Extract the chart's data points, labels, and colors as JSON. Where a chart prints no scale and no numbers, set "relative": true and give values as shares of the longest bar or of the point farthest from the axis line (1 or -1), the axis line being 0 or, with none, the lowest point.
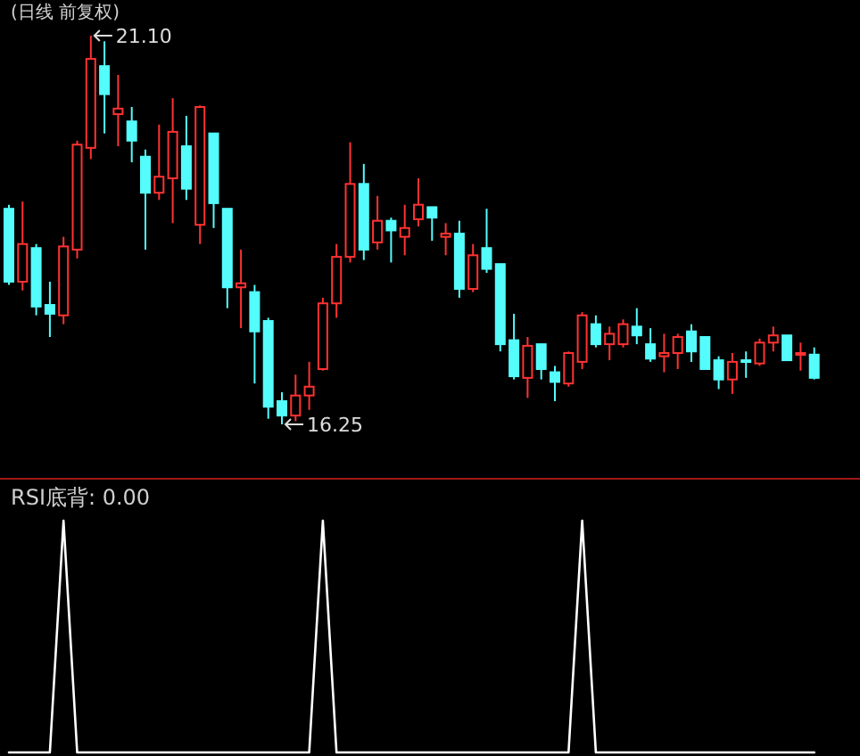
{
  "chart_data": [
    {
      "type": "candlestick",
      "title": "(日线 前复权)",
      "categories": [
        null,
        null,
        null,
        null,
        null,
        null,
        null,
        null,
        null,
        null,
        null,
        null,
        null,
        null,
        null,
        null,
        null,
        null,
        null,
        null,
        null,
        null,
        null,
        null,
        null,
        null,
        null,
        null,
        null,
        null,
        null,
        null,
        null,
        null,
        null,
        null,
        null,
        null,
        null,
        null,
        null,
        null,
        null,
        null,
        null,
        null,
        null,
        null,
        null,
        null,
        null,
        null,
        null,
        null,
        null,
        null,
        null,
        null,
        null,
        null
      ],
      "ohlc": [
        [
          18.94,
          18.99,
          17.99,
          18.03
        ],
        [
          18.03,
          19.03,
          17.92,
          18.5
        ],
        [
          18.45,
          18.5,
          17.61,
          17.72
        ],
        [
          17.74,
          18.03,
          17.34,
          17.63
        ],
        [
          17.61,
          18.59,
          17.5,
          18.47
        ],
        [
          18.43,
          19.79,
          18.32,
          19.74
        ],
        [
          19.7,
          21.1,
          19.56,
          20.81
        ],
        [
          20.72,
          21.03,
          19.88,
          20.37
        ],
        [
          20.12,
          20.61,
          19.72,
          20.19
        ],
        [
          20.03,
          20.21,
          19.52,
          19.79
        ],
        [
          19.59,
          19.68,
          18.43,
          19.14
        ],
        [
          19.14,
          19.99,
          19.05,
          19.34
        ],
        [
          19.32,
          20.32,
          18.76,
          19.9
        ],
        [
          19.72,
          20.1,
          19.05,
          19.19
        ],
        [
          18.74,
          20.23,
          18.5,
          20.21
        ],
        [
          19.88,
          19.88,
          18.7,
          19.01
        ],
        [
          18.94,
          18.94,
          17.7,
          17.96
        ],
        [
          17.96,
          18.43,
          17.45,
          18.01
        ],
        [
          17.9,
          17.99,
          16.76,
          17.41
        ],
        [
          17.54,
          17.58,
          16.32,
          16.47
        ],
        [
          16.54,
          16.65,
          16.25,
          16.36
        ],
        [
          16.36,
          16.87,
          16.29,
          16.61
        ],
        [
          16.61,
          17.03,
          16.43,
          16.72
        ],
        [
          16.94,
          17.83,
          16.92,
          17.76
        ],
        [
          17.76,
          18.5,
          17.58,
          18.34
        ],
        [
          18.34,
          19.77,
          18.27,
          19.25
        ],
        [
          19.25,
          19.5,
          18.3,
          18.43
        ],
        [
          18.52,
          19.1,
          18.43,
          18.79
        ],
        [
          18.79,
          18.83,
          18.27,
          18.67
        ],
        [
          18.59,
          18.99,
          18.36,
          18.7
        ],
        [
          18.81,
          19.32,
          18.72,
          18.99
        ],
        [
          18.96,
          18.96,
          18.54,
          18.83
        ],
        [
          18.59,
          18.76,
          18.36,
          18.63
        ],
        [
          18.63,
          18.79,
          17.83,
          17.94
        ],
        [
          17.94,
          18.5,
          17.9,
          18.36
        ],
        [
          18.45,
          18.94,
          18.14,
          18.19
        ],
        [
          18.25,
          18.25,
          17.16,
          17.25
        ],
        [
          17.3,
          17.63,
          16.81,
          16.85
        ],
        [
          16.83,
          17.34,
          16.58,
          17.23
        ],
        [
          17.25,
          17.25,
          16.81,
          16.94
        ],
        [
          16.9,
          16.98,
          16.54,
          16.78
        ],
        [
          16.76,
          17.16,
          16.72,
          17.14
        ],
        [
          17.03,
          17.65,
          16.94,
          17.61
        ],
        [
          17.5,
          17.61,
          17.21,
          17.25
        ],
        [
          17.25,
          17.47,
          17.05,
          17.38
        ],
        [
          17.25,
          17.56,
          17.21,
          17.5
        ],
        [
          17.47,
          17.7,
          17.25,
          17.36
        ],
        [
          17.25,
          17.45,
          17.03,
          17.07
        ],
        [
          17.1,
          17.38,
          16.9,
          17.14
        ],
        [
          17.14,
          17.38,
          16.94,
          17.34
        ],
        [
          17.41,
          17.5,
          17.03,
          17.16
        ],
        [
          17.34,
          17.34,
          16.94,
          16.94
        ],
        [
          17.05,
          17.1,
          16.69,
          16.81
        ],
        [
          16.81,
          17.14,
          16.63,
          17.03
        ],
        [
          17.05,
          17.16,
          16.83,
          17.03
        ],
        [
          17.01,
          17.32,
          16.98,
          17.27
        ],
        [
          17.27,
          17.47,
          17.16,
          17.36
        ],
        [
          17.36,
          17.36,
          17.05,
          17.05
        ],
        [
          17.12,
          17.27,
          16.92,
          17.14
        ],
        [
          17.12,
          17.21,
          16.81,
          16.83
        ]
      ],
      "colors": [
        "#54fcfc",
        "#ff3232",
        "#54fcfc",
        "#54fcfc",
        "#ff3232",
        "#ff3232",
        "#ff3232",
        "#54fcfc",
        "#ff3232",
        "#54fcfc",
        "#54fcfc",
        "#ff3232",
        "#ff3232",
        "#54fcfc",
        "#ff3232",
        "#54fcfc",
        "#54fcfc",
        "#ff3232",
        "#54fcfc",
        "#54fcfc",
        "#54fcfc",
        "#ff3232",
        "#ff3232",
        "#ff3232",
        "#ff3232",
        "#ff3232",
        "#54fcfc",
        "#ff3232",
        "#54fcfc",
        "#ff3232",
        "#ff3232",
        "#54fcfc",
        "#ff3232",
        "#54fcfc",
        "#ff3232",
        "#54fcfc",
        "#54fcfc",
        "#54fcfc",
        "#ff3232",
        "#54fcfc",
        "#54fcfc",
        "#ff3232",
        "#ff3232",
        "#54fcfc",
        "#ff3232",
        "#ff3232",
        "#54fcfc",
        "#54fcfc",
        "#ff3232",
        "#ff3232",
        "#54fcfc",
        "#54fcfc",
        "#54fcfc",
        "#ff3232",
        "#54fcfc",
        "#ff3232",
        "#ff3232",
        "#54fcfc",
        "#ff3232",
        "#54fcfc"
      ],
      "annotations": [
        "21.10",
        "16.25"
      ]
    },
    {
      "type": "line",
      "title": "RSI底背: 0.00",
      "relative": true,
      "categories": [
        null,
        null,
        null,
        null,
        null,
        null,
        null,
        null,
        null,
        null,
        null,
        null,
        null,
        null,
        null,
        null,
        null,
        null,
        null,
        null,
        null,
        null,
        null,
        null,
        null,
        null,
        null,
        null,
        null,
        null,
        null,
        null,
        null,
        null,
        null,
        null,
        null,
        null,
        null,
        null,
        null,
        null,
        null,
        null,
        null,
        null,
        null,
        null,
        null,
        null,
        null,
        null,
        null,
        null,
        null,
        null,
        null,
        null,
        null,
        null
      ],
      "series": [
        {
          "color": "#ffffff",
          "values": [
            0,
            0,
            0,
            0,
            1,
            0,
            0,
            0,
            0,
            0,
            0,
            0,
            0,
            0,
            0,
            0,
            0,
            0,
            0,
            0,
            0,
            0,
            0,
            1,
            0,
            0,
            0,
            0,
            0,
            0,
            0,
            0,
            0,
            0,
            0,
            0,
            0,
            0,
            0,
            0,
            0,
            0,
            1,
            0,
            0,
            0,
            0,
            0,
            0,
            0,
            0,
            0,
            0,
            0,
            0,
            0,
            0,
            0,
            0,
            0
          ]
        }
      ]
    }
  ]
}
